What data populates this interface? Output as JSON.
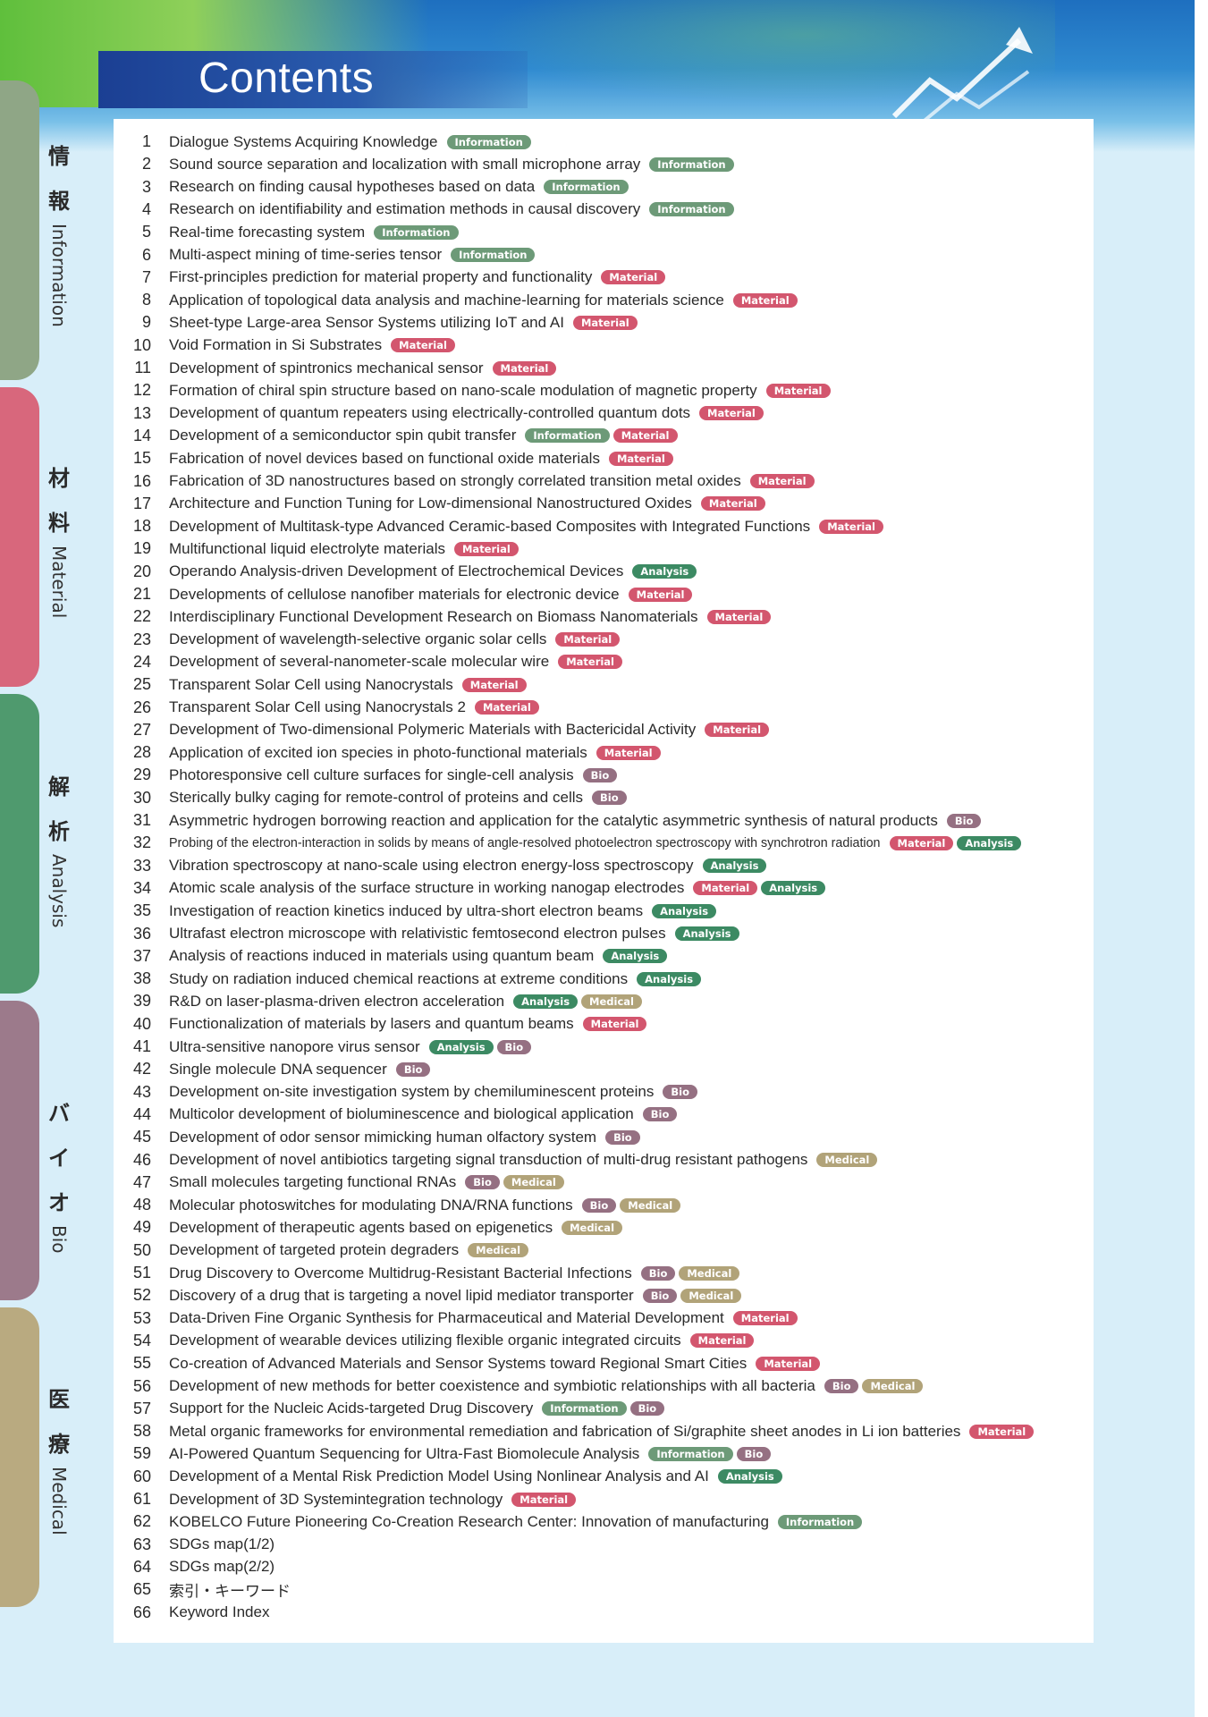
{
  "title": "Contents",
  "colors": {
    "Information": "#6d9a78",
    "Material": "#d3566e",
    "Analysis": "#3c8a63",
    "Bio": "#957082",
    "Medical": "#b1a379",
    "tab_information": "#8fa686",
    "tab_material": "#d8677c",
    "tab_analysis": "#4f9a6e",
    "tab_bio": "#9c7a8b",
    "tab_medical": "#b9aa80"
  },
  "sections": [
    {
      "kanji": [
        "情",
        "報"
      ],
      "label": "Information",
      "color_key": "tab_information"
    },
    {
      "kanji": [
        "材",
        "料"
      ],
      "label": "Material",
      "color_key": "tab_material"
    },
    {
      "kanji": [
        "解",
        "析"
      ],
      "label": "Analysis",
      "color_key": "tab_analysis"
    },
    {
      "kanji": [
        "バ",
        "イ",
        "オ"
      ],
      "label": "Bio",
      "color_key": "tab_bio"
    },
    {
      "kanji": [
        "医",
        "療"
      ],
      "label": "Medical",
      "color_key": "tab_medical"
    }
  ],
  "entries": [
    {
      "no": "1",
      "title": "Dialogue Systems Acquiring Knowledge",
      "tags": [
        "Information"
      ]
    },
    {
      "no": "2",
      "title": "Sound source separation and localization with small microphone array",
      "tags": [
        "Information"
      ]
    },
    {
      "no": "3",
      "title": "Research on finding causal hypotheses based on data",
      "tags": [
        "Information"
      ]
    },
    {
      "no": "4",
      "title": "Research on identifiability and estimation methods in causal discovery",
      "tags": [
        "Information"
      ]
    },
    {
      "no": "5",
      "title": "Real-time forecasting system",
      "tags": [
        "Information"
      ]
    },
    {
      "no": "6",
      "title": "Multi-aspect mining of time-series tensor",
      "tags": [
        "Information"
      ]
    },
    {
      "no": "7",
      "title": "First-principles prediction for material property and functionality",
      "tags": [
        "Material"
      ]
    },
    {
      "no": "8",
      "title": "Application of topological data analysis and machine-learning for materials science",
      "tags": [
        "Material"
      ]
    },
    {
      "no": "9",
      "title": "Sheet-type Large-area Sensor Systems utilizing IoT and AI",
      "tags": [
        "Material"
      ]
    },
    {
      "no": "10",
      "title": "Void Formation in Si Substrates",
      "tags": [
        "Material"
      ]
    },
    {
      "no": "11",
      "title": "Development of spintronics mechanical sensor",
      "tags": [
        "Material"
      ]
    },
    {
      "no": "12",
      "title": "Formation of chiral spin structure based on nano-scale modulation of magnetic property",
      "tags": [
        "Material"
      ]
    },
    {
      "no": "13",
      "title": "Development of quantum repeaters using electrically-controlled quantum dots",
      "tags": [
        "Material"
      ]
    },
    {
      "no": "14",
      "title": "Development of a semiconductor spin qubit transfer",
      "tags": [
        "Information",
        "Material"
      ]
    },
    {
      "no": "15",
      "title": "Fabrication of novel devices based on functional oxide materials",
      "tags": [
        "Material"
      ]
    },
    {
      "no": "16",
      "title": "Fabrication of 3D nanostructures based on strongly correlated transition metal oxides",
      "tags": [
        "Material"
      ]
    },
    {
      "no": "17",
      "title": "Architecture and Function Tuning for Low-dimensional Nanostructured Oxides",
      "tags": [
        "Material"
      ]
    },
    {
      "no": "18",
      "title": "Development of Multitask-type Advanced Ceramic-based Composites with Integrated Functions",
      "tags": [
        "Material"
      ]
    },
    {
      "no": "19",
      "title": "Multifunctional liquid electrolyte materials",
      "tags": [
        "Material"
      ]
    },
    {
      "no": "20",
      "title": "Operando Analysis-driven Development of Electrochemical Devices",
      "tags": [
        "Analysis"
      ]
    },
    {
      "no": "21",
      "title": "Developments of cellulose nanofiber materials for electronic device",
      "tags": [
        "Material"
      ]
    },
    {
      "no": "22",
      "title": "Interdisciplinary Functional Development Research on Biomass Nanomaterials",
      "tags": [
        "Material"
      ]
    },
    {
      "no": "23",
      "title": "Development of wavelength-selective organic solar cells",
      "tags": [
        "Material"
      ]
    },
    {
      "no": "24",
      "title": "Development of several-nanometer-scale molecular wire",
      "tags": [
        "Material"
      ]
    },
    {
      "no": "25",
      "title": "Transparent Solar Cell using Nanocrystals",
      "tags": [
        "Material"
      ]
    },
    {
      "no": "26",
      "title": "Transparent Solar Cell using Nanocrystals 2",
      "tags": [
        "Material"
      ]
    },
    {
      "no": "27",
      "title": "Development of Two-dimensional Polymeric Materials with Bactericidal Activity",
      "tags": [
        "Material"
      ]
    },
    {
      "no": "28",
      "title": "Application of excited ion species in photo-functional materials",
      "tags": [
        "Material"
      ]
    },
    {
      "no": "29",
      "title": "Photoresponsive cell culture surfaces for single-cell analysis",
      "tags": [
        "Bio"
      ]
    },
    {
      "no": "30",
      "title": "Sterically bulky caging for remote-control of proteins and cells",
      "tags": [
        "Bio"
      ]
    },
    {
      "no": "31",
      "title": "Asymmetric hydrogen borrowing reaction and application for the catalytic asymmetric synthesis of natural products",
      "tags": [
        "Bio"
      ]
    },
    {
      "no": "32",
      "title": "Probing of the electron-interaction in solids by means of angle-resolved photoelectron spectroscopy with synchrotron radiation",
      "tags": [
        "Material",
        "Analysis"
      ],
      "small": true
    },
    {
      "no": "33",
      "title": "Vibration spectroscopy at nano-scale using electron energy-loss spectroscopy",
      "tags": [
        "Analysis"
      ]
    },
    {
      "no": "34",
      "title": "Atomic scale analysis of the surface structure in working nanogap electrodes",
      "tags": [
        "Material",
        "Analysis"
      ]
    },
    {
      "no": "35",
      "title": "Investigation of reaction kinetics induced by ultra-short electron beams",
      "tags": [
        "Analysis"
      ]
    },
    {
      "no": "36",
      "title": "Ultrafast electron microscope with relativistic femtosecond electron pulses",
      "tags": [
        "Analysis"
      ]
    },
    {
      "no": "37",
      "title": "Analysis of reactions induced in materials using quantum beam",
      "tags": [
        "Analysis"
      ]
    },
    {
      "no": "38",
      "title": "Study on radiation induced chemical reactions at extreme conditions",
      "tags": [
        "Analysis"
      ]
    },
    {
      "no": "39",
      "title": "R&D on laser-plasma-driven electron acceleration",
      "tags": [
        "Analysis",
        "Medical"
      ]
    },
    {
      "no": "40",
      "title": "Functionalization of materials by lasers and quantum beams",
      "tags": [
        "Material"
      ]
    },
    {
      "no": "41",
      "title": "Ultra-sensitive nanopore virus sensor",
      "tags": [
        "Analysis",
        "Bio"
      ]
    },
    {
      "no": "42",
      "title": "Single molecule DNA sequencer",
      "tags": [
        "Bio"
      ]
    },
    {
      "no": "43",
      "title": "Development on-site investigation system by chemiluminescent proteins",
      "tags": [
        "Bio"
      ]
    },
    {
      "no": "44",
      "title": "Multicolor development of bioluminescence and biological application",
      "tags": [
        "Bio"
      ]
    },
    {
      "no": "45",
      "title": "Development of odor sensor mimicking human olfactory system",
      "tags": [
        "Bio"
      ]
    },
    {
      "no": "46",
      "title": "Development of novel antibiotics targeting signal transduction of multi-drug resistant pathogens",
      "tags": [
        "Medical"
      ]
    },
    {
      "no": "47",
      "title": "Small molecules targeting functional RNAs",
      "tags": [
        "Bio",
        "Medical"
      ]
    },
    {
      "no": "48",
      "title": "Molecular photoswitches for modulating DNA/RNA functions",
      "tags": [
        "Bio",
        "Medical"
      ]
    },
    {
      "no": "49",
      "title": "Development of therapeutic agents based on epigenetics",
      "tags": [
        "Medical"
      ]
    },
    {
      "no": "50",
      "title": "Development of targeted protein degraders",
      "tags": [
        "Medical"
      ]
    },
    {
      "no": "51",
      "title": "Drug Discovery to Overcome Multidrug-Resistant Bacterial Infections",
      "tags": [
        "Bio",
        "Medical"
      ]
    },
    {
      "no": "52",
      "title": "Discovery of a drug that is targeting a novel lipid mediator transporter",
      "tags": [
        "Bio",
        "Medical"
      ]
    },
    {
      "no": "53",
      "title": "Data-Driven Fine Organic Synthesis for Pharmaceutical and Material Development",
      "tags": [
        "Material"
      ]
    },
    {
      "no": "54",
      "title": "Development of wearable devices utilizing flexible organic integrated circuits",
      "tags": [
        "Material"
      ]
    },
    {
      "no": "55",
      "title": "Co-creation of Advanced Materials and Sensor Systems toward Regional Smart Cities",
      "tags": [
        "Material"
      ]
    },
    {
      "no": "56",
      "title": "Development of new methods for better coexistence and symbiotic relationships with all bacteria",
      "tags": [
        "Bio",
        "Medical"
      ]
    },
    {
      "no": "57",
      "title": "Support for the Nucleic Acids-targeted Drug Discovery",
      "tags": [
        "Information",
        "Bio"
      ]
    },
    {
      "no": "58",
      "title": "Metal organic frameworks for environmental remediation and fabrication of Si/graphite sheet anodes in Li ion batteries",
      "tags": [
        "Material"
      ]
    },
    {
      "no": "59",
      "title": "AI-Powered Quantum Sequencing for Ultra-Fast Biomolecule Analysis",
      "tags": [
        "Information",
        "Bio"
      ]
    },
    {
      "no": "60",
      "title": "Development of a Mental Risk Prediction Model Using Nonlinear Analysis and AI",
      "tags": [
        "Analysis"
      ]
    },
    {
      "no": "61",
      "title": "Development of 3D Systemintegration technology",
      "tags": [
        "Material"
      ]
    },
    {
      "no": "62",
      "title": "KOBELCO Future Pioneering Co-Creation Research Center: Innovation of manufacturing",
      "tags": [
        "Information"
      ]
    },
    {
      "no": "63",
      "title": "SDGs map(1/2)",
      "tags": []
    },
    {
      "no": "64",
      "title": "SDGs map(2/2)",
      "tags": []
    },
    {
      "no": "65",
      "title": "索引・キーワード",
      "tags": []
    },
    {
      "no": "66",
      "title": "Keyword Index",
      "tags": []
    }
  ]
}
